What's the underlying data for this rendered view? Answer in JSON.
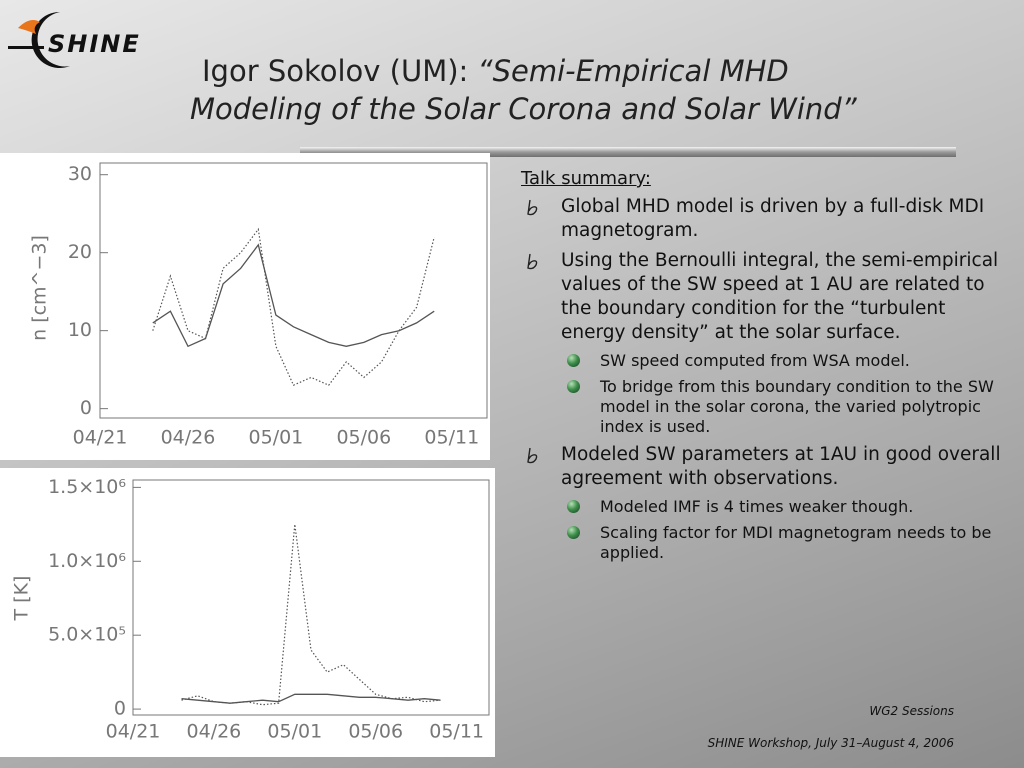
{
  "header": {
    "logo": "SHINE",
    "title_plain": "Igor Sokolov (UM): ",
    "title_italic_1": "“Semi-Empirical MHD",
    "title_italic_2": "Modeling of the Solar Corona and Solar Wind”"
  },
  "summary": {
    "heading": "Talk summary:",
    "bullets": [
      {
        "text": "Global MHD model is driven by a full-disk MDI magnetogram.",
        "sub": []
      },
      {
        "text": "Using the Bernoulli integral, the semi-empirical values of the SW speed at 1 AU are related to the boundary condition for the “turbulent energy density” at the solar surface.",
        "sub": [
          "SW speed computed from WSA model.",
          "To bridge from this boundary condition to the SW model in the solar corona, the varied polytropic index is used."
        ]
      },
      {
        "text": "Modeled SW parameters at 1AU in good overall agreement with observations.",
        "sub": [
          "Modeled IMF is 4 times weaker though.",
          "Scaling factor for MDI magnetogram needs to be applied."
        ]
      }
    ]
  },
  "footer": {
    "session": "WG2 Sessions",
    "workshop": "SHINE Workshop, July 31–August 4, 2006"
  },
  "chart_data": [
    {
      "type": "line",
      "ylabel": "n [cm^−3]",
      "categories": [
        "04/21",
        null,
        null,
        null,
        null,
        "04/26",
        null,
        null,
        null,
        null,
        "05/01",
        null,
        null,
        null,
        null,
        "05/06",
        null,
        null,
        null,
        null,
        "05/11",
        null,
        null
      ],
      "series": [
        {
          "style": "solid",
          "color": "#555555",
          "values": [
            null,
            null,
            null,
            11,
            12.5,
            8,
            9,
            16,
            18,
            21,
            12,
            10.5,
            9.5,
            8.5,
            8,
            8.5,
            9.5,
            10,
            11,
            12.5,
            null,
            null,
            null
          ]
        },
        {
          "style": "dotted",
          "color": "#555555",
          "values": [
            null,
            null,
            null,
            10,
            17,
            10,
            9,
            18,
            20,
            23,
            8,
            3,
            4,
            3,
            6,
            4,
            6,
            10,
            13,
            22,
            null,
            null,
            null
          ]
        }
      ],
      "ylim": [
        -1.2,
        31.5
      ],
      "yticks": [
        0,
        10,
        20,
        30
      ]
    },
    {
      "type": "line",
      "ylabel": "T [K]",
      "categories": [
        "04/21",
        null,
        null,
        null,
        null,
        "04/26",
        null,
        null,
        null,
        null,
        "05/01",
        null,
        null,
        null,
        null,
        "05/06",
        null,
        null,
        null,
        null,
        "05/11",
        null,
        null
      ],
      "series": [
        {
          "style": "solid",
          "color": "#555555",
          "values": [
            null,
            null,
            null,
            70000,
            60000,
            50000,
            40000,
            50000,
            60000,
            50000,
            100000,
            100000,
            100000,
            90000,
            80000,
            80000,
            70000,
            60000,
            70000,
            60000,
            null,
            null,
            null
          ]
        },
        {
          "style": "dotted",
          "color": "#555555",
          "values": [
            null,
            null,
            null,
            60000,
            90000,
            50000,
            40000,
            50000,
            30000,
            40000,
            1250000,
            400000,
            250000,
            300000,
            200000,
            100000,
            70000,
            80000,
            50000,
            60000,
            null,
            null,
            null
          ]
        }
      ],
      "ylim": [
        -40000,
        1550000
      ],
      "yticks": [
        {
          "value": 0,
          "label": "0"
        },
        {
          "value": 500000,
          "label": "5.0×10⁵"
        },
        {
          "value": 1000000,
          "label": "1.0×10⁶"
        },
        {
          "value": 1500000,
          "label": "1.5×10⁶"
        }
      ]
    }
  ]
}
